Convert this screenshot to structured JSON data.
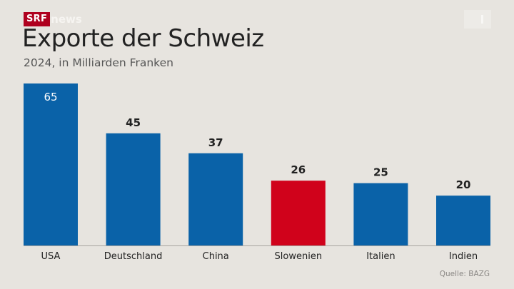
{
  "brand": {
    "srf": "SRF",
    "news": "news"
  },
  "header": {
    "title": "Exporte der Schweiz",
    "subtitle": "2024, in Milliarden Franken"
  },
  "source": "Quelle: BAZG",
  "colors": {
    "bar": "#0a62a8",
    "highlight": "#d0021b",
    "background": "#e7e4df",
    "label": "#222222",
    "inner_label": "#ffffff",
    "baseline": "#a8a5a0"
  },
  "chart_data": {
    "type": "bar",
    "title": "Exporte der Schweiz",
    "subtitle": "2024, in Milliarden Franken",
    "xlabel": "",
    "ylabel": "",
    "categories": [
      "USA",
      "Deutschland",
      "China",
      "Slowenien",
      "Italien",
      "Indien"
    ],
    "values": [
      65,
      45,
      37,
      26,
      25,
      20
    ],
    "highlighted": [
      "Slowenien"
    ],
    "ylim": [
      0,
      65
    ],
    "grid": false,
    "legend": "none",
    "data_labels": true,
    "source": "Quelle: BAZG"
  }
}
